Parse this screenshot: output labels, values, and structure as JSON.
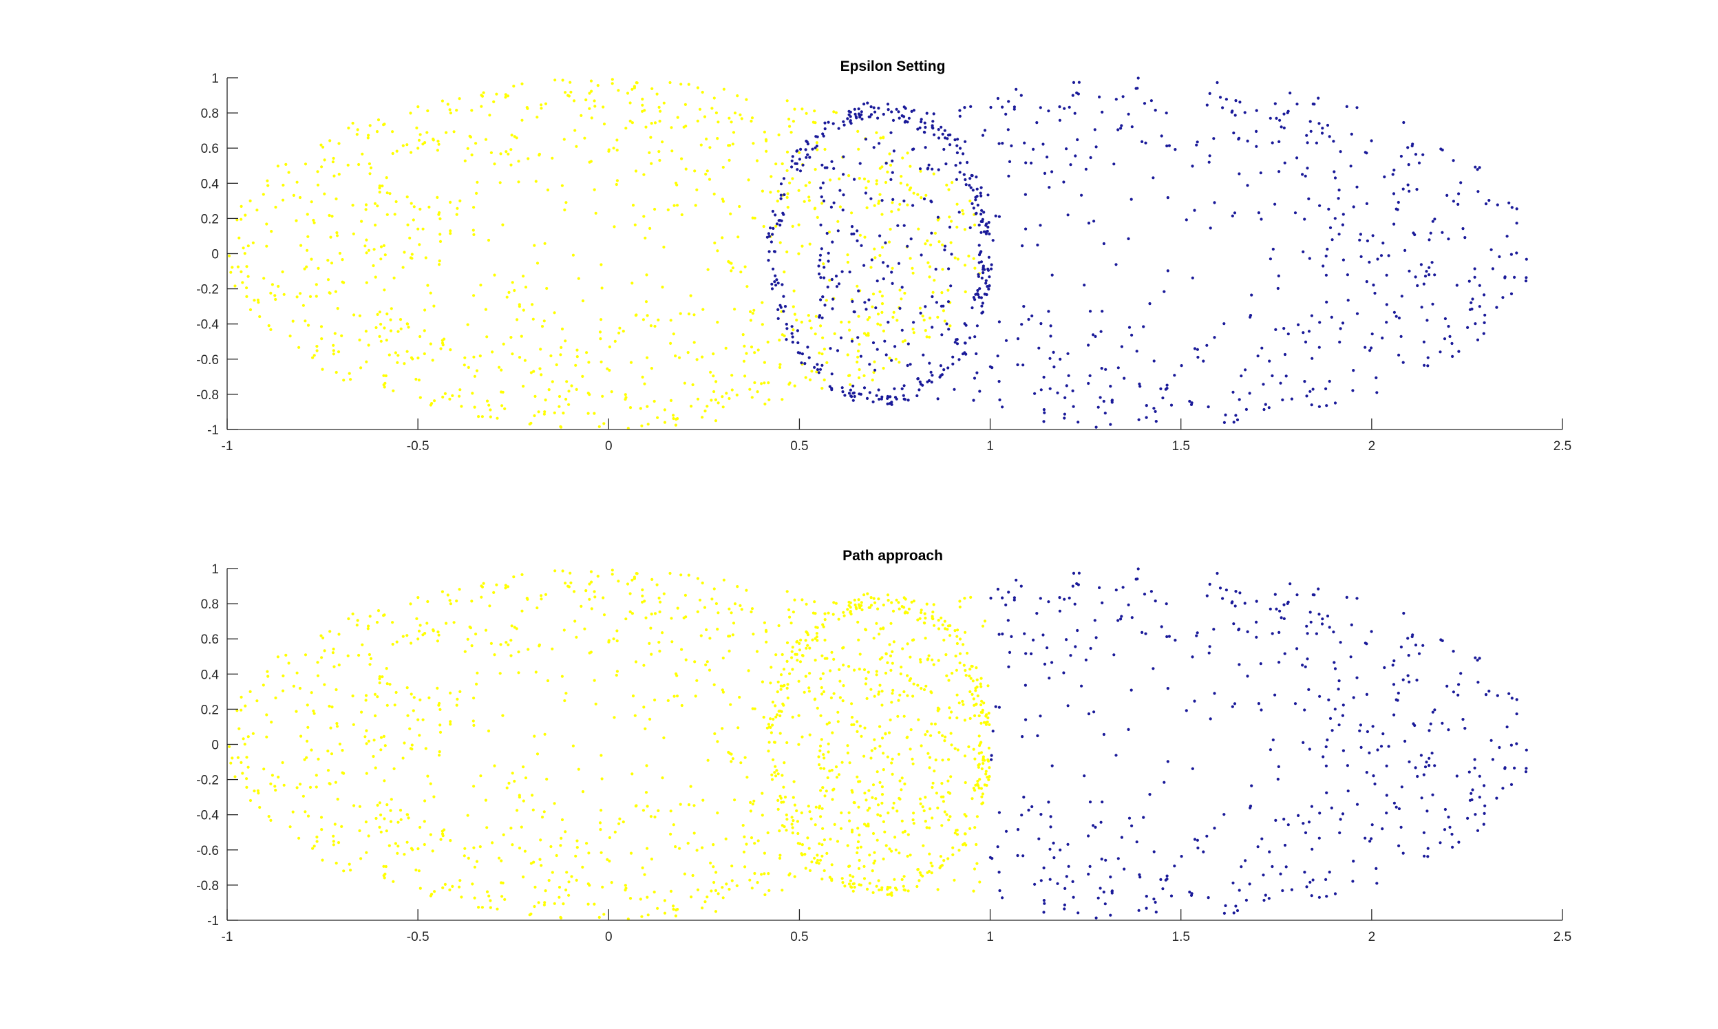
{
  "colors": {
    "background": "#ffffff",
    "axis": "#262626",
    "cluster_a": "#ffff00",
    "cluster_b": "#1a1a99"
  },
  "chart_data": [
    {
      "type": "scatter",
      "title": "Epsilon Setting",
      "xlabel": "",
      "ylabel": "",
      "xlim": [
        -1,
        2.5
      ],
      "ylim": [
        -1,
        1
      ],
      "x_ticks": [
        -1,
        -0.5,
        0,
        0.5,
        1,
        1.5,
        2,
        2.5
      ],
      "x_tick_labels": [
        "-1",
        "-0.5",
        "0",
        "0.5",
        "1",
        "1.5",
        "2",
        "2.5"
      ],
      "y_ticks": [
        -1,
        -0.8,
        -0.6,
        -0.4,
        -0.2,
        0,
        0.2,
        0.4,
        0.6,
        0.8,
        1
      ],
      "y_tick_labels": [
        "-1",
        "-0.8",
        "-0.6",
        "-0.4",
        "-0.2",
        "0",
        "0.2",
        "0.4",
        "0.6",
        "0.8",
        "1"
      ],
      "grid": false,
      "legend": "none",
      "series": [
        {
          "color": "#ffff00",
          "marker": "dot",
          "count": 1000,
          "shape": "ellipse",
          "x_range": [
            -1.0,
            1.0
          ],
          "y_range": [
            -1.0,
            1.0
          ],
          "region": "x < 0.55 (plus points of the inner ring with x < 0.58)"
        },
        {
          "color": "#1a1a99",
          "marker": "dot",
          "count": 1000,
          "shape": "ellipse with inner ring",
          "x_range": [
            0.42,
            2.42
          ],
          "y_range": [
            -1.0,
            1.0
          ],
          "region": "x >= 0.55, includes inner ring x in [0.42, 1.0]"
        }
      ]
    },
    {
      "type": "scatter",
      "title": "Path approach",
      "xlabel": "",
      "ylabel": "",
      "xlim": [
        -1,
        2.5
      ],
      "ylim": [
        -1,
        1
      ],
      "x_ticks": [
        -1,
        -0.5,
        0,
        0.5,
        1,
        1.5,
        2,
        2.5
      ],
      "x_tick_labels": [
        "-1",
        "-0.5",
        "0",
        "0.5",
        "1",
        "1.5",
        "2",
        "2.5"
      ],
      "y_ticks": [
        -1,
        -0.8,
        -0.6,
        -0.4,
        -0.2,
        0,
        0.2,
        0.4,
        0.6,
        0.8,
        1
      ],
      "y_tick_labels": [
        "-1",
        "-0.8",
        "-0.6",
        "-0.4",
        "-0.2",
        "0",
        "0.2",
        "0.4",
        "0.6",
        "0.8",
        "1"
      ],
      "grid": false,
      "legend": "none",
      "series": [
        {
          "color": "#ffff00",
          "marker": "dot",
          "count": 1000,
          "shape": "ellipse plus inner ring",
          "x_range": [
            -1.0,
            1.0
          ],
          "y_range": [
            -1.0,
            1.0
          ],
          "region": "left ellipse x < 0.65 and inner ring x in [0.42, 1.0]"
        },
        {
          "color": "#1a1a99",
          "marker": "dot",
          "count": 1000,
          "shape": "ellipse",
          "x_range": [
            0.55,
            2.42
          ],
          "y_range": [
            -1.0,
            1.0
          ],
          "region": "right ellipse excluding inner ring"
        }
      ]
    }
  ]
}
